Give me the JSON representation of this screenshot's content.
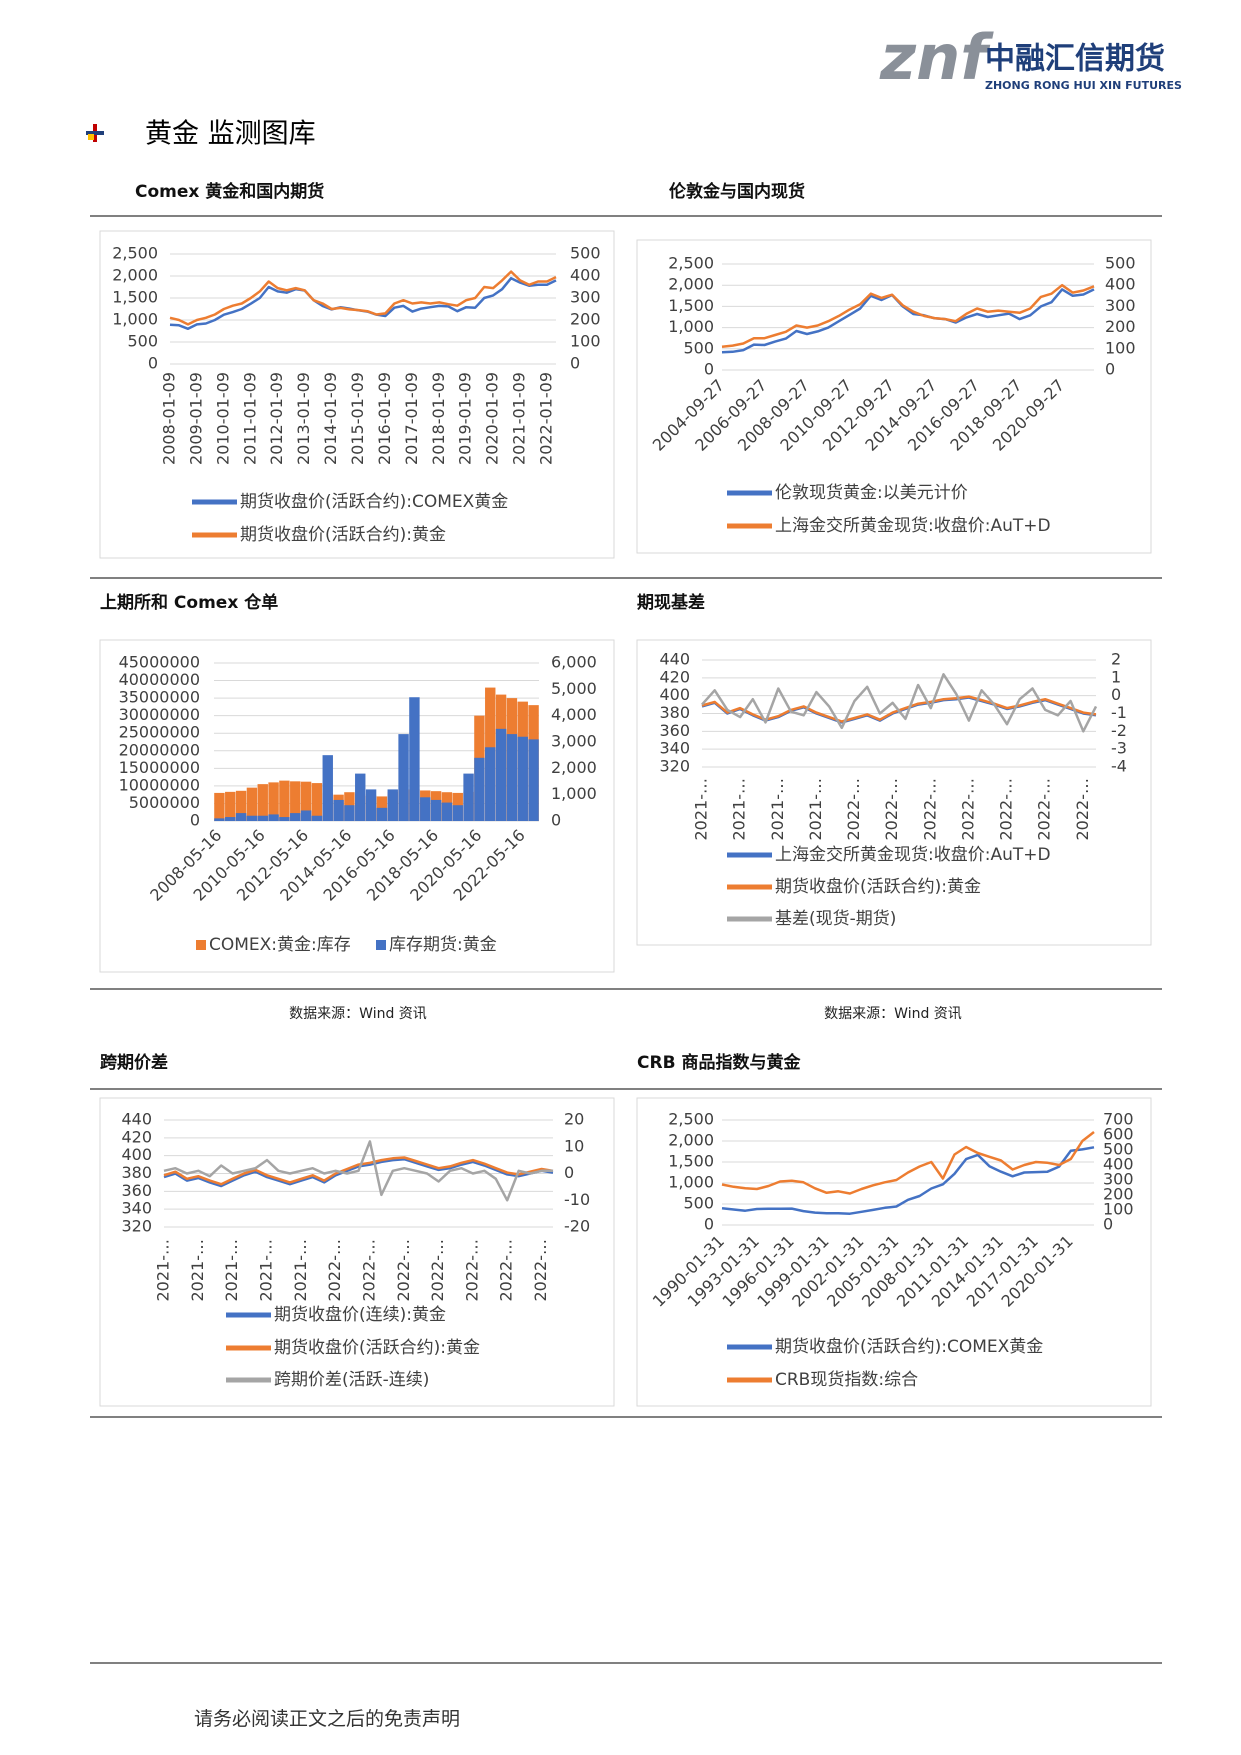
{
  "logo": {
    "mark": "znf",
    "name": "中融汇信期货",
    "english": "ZHONG RONG HUI XIN FUTURES"
  },
  "section_title": "黄金 监测图库",
  "sources": [
    "数据来源：Wind 资讯",
    "数据来源：Wind 资讯"
  ],
  "footer": "请务必阅读正文之后的免责声明",
  "chart_data": [
    {
      "type": "line",
      "title": "Comex 黄金和国内期货",
      "categories": [
        "2008-01-09",
        null,
        null,
        "2009-01-09",
        null,
        null,
        "2010-01-09",
        null,
        null,
        "2011-01-09",
        null,
        null,
        "2012-01-09",
        null,
        null,
        "2013-01-09",
        null,
        null,
        "2014-01-09",
        null,
        null,
        "2015-01-09",
        null,
        null,
        "2016-01-09",
        null,
        null,
        "2017-01-09",
        null,
        null,
        "2018-01-09",
        null,
        null,
        "2019-01-09",
        null,
        null,
        "2020-01-09",
        null,
        null,
        "2021-01-09",
        null,
        null,
        "2022-01-09",
        null
      ],
      "series": [
        {
          "name": "期货收盘价(活跃合约):COMEX黄金",
          "color": "#4472c4",
          "values": [
            890,
            880,
            800,
            900,
            920,
            1000,
            1120,
            1180,
            1250,
            1370,
            1500,
            1750,
            1650,
            1620,
            1700,
            1670,
            1450,
            1320,
            1240,
            1290,
            1260,
            1220,
            1190,
            1120,
            1090,
            1280,
            1320,
            1190,
            1260,
            1290,
            1320,
            1310,
            1200,
            1290,
            1280,
            1500,
            1560,
            1700,
            1950,
            1850,
            1780,
            1800,
            1800,
            1900
          ]
        },
        {
          "name": "期货收盘价(活跃合约):黄金",
          "color": "#ed7d31",
          "axis": "y2",
          "values": [
            210,
            200,
            180,
            200,
            210,
            225,
            250,
            265,
            275,
            300,
            330,
            375,
            345,
            335,
            345,
            335,
            290,
            275,
            250,
            255,
            248,
            245,
            240,
            225,
            230,
            275,
            290,
            275,
            280,
            275,
            280,
            272,
            265,
            290,
            300,
            350,
            345,
            380,
            420,
            380,
            360,
            375,
            375,
            395
          ]
        }
      ],
      "ylim": [
        0,
        2500
      ],
      "yticks": [
        0,
        500,
        {
          "value": 1000,
          "label": "1,000"
        },
        {
          "value": 1500,
          "label": "1,500"
        },
        {
          "value": 2000,
          "label": "2,000"
        },
        {
          "value": 2500,
          "label": "2,500"
        }
      ],
      "y2lim": [
        0,
        500
      ],
      "y2ticks": [
        0,
        100,
        200,
        300,
        400,
        500
      ],
      "grid": true
    },
    {
      "type": "line",
      "title": "伦敦金与国内现货",
      "categories": [
        "2004-09-27",
        null,
        null,
        null,
        "2006-09-27",
        null,
        null,
        null,
        "2008-09-27",
        null,
        null,
        null,
        "2010-09-27",
        null,
        null,
        null,
        "2012-09-27",
        null,
        null,
        null,
        "2014-09-27",
        null,
        null,
        null,
        "2016-09-27",
        null,
        null,
        null,
        "2018-09-27",
        null,
        null,
        null,
        "2020-09-27",
        null,
        null,
        null
      ],
      "series": [
        {
          "name": "伦敦现货黄金:以美元计价",
          "color": "#4472c4",
          "values": [
            420,
            430,
            470,
            600,
            590,
            670,
            740,
            920,
            850,
            910,
            1000,
            1150,
            1300,
            1450,
            1750,
            1650,
            1770,
            1500,
            1320,
            1290,
            1220,
            1200,
            1120,
            1240,
            1320,
            1250,
            1290,
            1330,
            1200,
            1290,
            1500,
            1600,
            1900,
            1750,
            1780,
            1900
          ]
        },
        {
          "name": "上海金交所黄金现货:收盘价:AuT+D",
          "color": "#ed7d31",
          "axis": "y2",
          "values": [
            110,
            115,
            125,
            150,
            150,
            165,
            180,
            210,
            200,
            210,
            230,
            255,
            285,
            310,
            360,
            340,
            355,
            305,
            275,
            255,
            245,
            240,
            230,
            265,
            290,
            275,
            280,
            275,
            270,
            290,
            345,
            360,
            400,
            365,
            375,
            395
          ]
        }
      ],
      "ylim": [
        0,
        2500
      ],
      "yticks": [
        0,
        500,
        {
          "value": 1000,
          "label": "1,000"
        },
        {
          "value": 1500,
          "label": "1,500"
        },
        {
          "value": 2000,
          "label": "2,000"
        },
        {
          "value": 2500,
          "label": "2,500"
        }
      ],
      "y2lim": [
        0,
        500
      ],
      "y2ticks": [
        0,
        100,
        200,
        300,
        400,
        500
      ],
      "grid": true
    },
    {
      "type": "bar",
      "title": "上期所和 Comex 仓单",
      "categories": [
        "2008-05-16",
        null,
        null,
        null,
        "2010-05-16",
        null,
        null,
        null,
        "2012-05-16",
        null,
        null,
        null,
        "2014-05-16",
        null,
        null,
        null,
        "2016-05-16",
        null,
        null,
        null,
        "2018-05-16",
        null,
        null,
        null,
        "2020-05-16",
        null,
        null,
        null,
        "2022-05-16",
        null
      ],
      "series": [
        {
          "name": "COMEX:黄金:库存",
          "color": "#ed7d31",
          "values": [
            8000000,
            8300000,
            8600000,
            9500000,
            10500000,
            11000000,
            11500000,
            11300000,
            11200000,
            10800000,
            8000000,
            7500000,
            8200000,
            7800000,
            7200000,
            7000000,
            8300000,
            9000000,
            9000000,
            8700000,
            8500000,
            8200000,
            8000000,
            8300000,
            30000000,
            38000000,
            36000000,
            35000000,
            34000000,
            33000000
          ]
        },
        {
          "name": "库存期货:黄金",
          "color": "#4472c4",
          "axis": "y2",
          "values": [
            100,
            150,
            300,
            200,
            200,
            250,
            150,
            300,
            400,
            200,
            2500,
            800,
            600,
            1800,
            1200,
            500,
            1200,
            3300,
            4700,
            900,
            800,
            700,
            600,
            1800,
            2400,
            2800,
            3500,
            3300,
            3200,
            3100
          ]
        }
      ],
      "ylim": [
        0,
        45000000
      ],
      "yticks": [
        0,
        5000000,
        10000000,
        15000000,
        20000000,
        25000000,
        30000000,
        35000000,
        40000000,
        45000000
      ],
      "y2lim": [
        0,
        6000
      ],
      "y2ticks": [
        0,
        {
          "value": 1000,
          "label": "1,000"
        },
        {
          "value": 2000,
          "label": "2,000"
        },
        {
          "value": 3000,
          "label": "3,000"
        },
        {
          "value": 4000,
          "label": "4,000"
        },
        {
          "value": 5000,
          "label": "5,000"
        },
        {
          "value": 6000,
          "label": "6,000"
        }
      ],
      "grid": true
    },
    {
      "type": "line",
      "title": "期现基差",
      "categories": [
        "2021-…",
        null,
        null,
        "2021-…",
        null,
        null,
        "2021-…",
        null,
        null,
        "2021-…",
        null,
        null,
        "2022-…",
        null,
        null,
        "2022-…",
        null,
        null,
        "2022-…",
        null,
        null,
        "2022-…",
        null,
        null,
        "2022-…",
        null,
        null,
        "2022-…",
        null,
        null,
        "2022-…",
        null
      ],
      "series": [
        {
          "name": "上海金交所黄金现货:收盘价:AuT+D",
          "color": "#4472c4",
          "values": [
            388,
            392,
            380,
            385,
            378,
            372,
            376,
            383,
            387,
            380,
            375,
            370,
            374,
            378,
            372,
            380,
            385,
            390,
            392,
            395,
            396,
            398,
            394,
            390,
            385,
            388,
            392,
            395,
            390,
            385,
            380,
            378
          ]
        },
        {
          "name": "期货收盘价(活跃合约):黄金",
          "color": "#ed7d31",
          "values": [
            389,
            393,
            381,
            386,
            379,
            373,
            377,
            384,
            388,
            381,
            376,
            371,
            375,
            379,
            373,
            381,
            386,
            391,
            393,
            396,
            397,
            399,
            395,
            391,
            386,
            389,
            393,
            396,
            391,
            386,
            381,
            379
          ]
        },
        {
          "name": "基差(现货-期货)",
          "color": "#a5a5a5",
          "axis": "y2",
          "values": [
            -0.5,
            0.3,
            -0.8,
            -1.2,
            -0.2,
            -1.5,
            0.4,
            -0.9,
            -1.1,
            0.2,
            -0.6,
            -1.8,
            -0.3,
            0.5,
            -1.0,
            -0.4,
            -1.3,
            0.6,
            -0.7,
            1.2,
            0.1,
            -1.4,
            0.3,
            -0.5,
            -1.6,
            -0.2,
            0.4,
            -0.8,
            -1.1,
            -0.3,
            -2.0,
            -0.6
          ]
        }
      ],
      "ylim": [
        320,
        440
      ],
      "yticks": [
        320,
        340,
        360,
        380,
        400,
        420,
        440
      ],
      "y2lim": [
        -4,
        2
      ],
      "y2ticks": [
        -4,
        -3,
        -2,
        -1,
        0,
        1,
        2
      ],
      "grid": true
    },
    {
      "type": "line",
      "title": "跨期价差",
      "categories": [
        "2021-…",
        null,
        null,
        "2021-…",
        null,
        null,
        "2021-…",
        null,
        null,
        "2021-…",
        null,
        null,
        "2021-…",
        null,
        null,
        "2022-…",
        null,
        null,
        "2022-…",
        null,
        null,
        "2022-…",
        null,
        null,
        "2022-…",
        null,
        null,
        "2022-…",
        null,
        null,
        "2022-…",
        null,
        null,
        "2022-…",
        null
      ],
      "series": [
        {
          "name": "期货收盘价(连续):黄金",
          "color": "#4472c4",
          "values": [
            376,
            380,
            372,
            375,
            370,
            366,
            372,
            378,
            382,
            376,
            372,
            368,
            372,
            376,
            370,
            378,
            383,
            388,
            390,
            393,
            395,
            396,
            392,
            388,
            384,
            386,
            390,
            393,
            389,
            384,
            379,
            377,
            380,
            383,
            381
          ]
        },
        {
          "name": "期货收盘价(活跃合约):黄金",
          "color": "#ed7d31",
          "values": [
            378,
            382,
            374,
            377,
            372,
            368,
            374,
            380,
            384,
            378,
            374,
            370,
            374,
            378,
            372,
            380,
            385,
            390,
            392,
            395,
            397,
            398,
            394,
            390,
            386,
            388,
            392,
            395,
            391,
            386,
            381,
            379,
            382,
            385,
            383
          ]
        },
        {
          "name": "跨期价差(活跃-连续)",
          "color": "#a5a5a5",
          "axis": "y2",
          "values": [
            1,
            2,
            0,
            1,
            -1,
            3,
            0,
            1,
            2,
            5,
            1,
            0,
            1,
            2,
            0,
            1,
            0,
            1,
            12,
            -8,
            1,
            2,
            1,
            0,
            -3,
            1,
            2,
            0,
            1,
            -2,
            -10,
            1,
            0,
            1,
            1
          ]
        }
      ],
      "ylim": [
        320,
        440
      ],
      "yticks": [
        320,
        340,
        360,
        380,
        400,
        420,
        440
      ],
      "y2lim": [
        -20,
        20
      ],
      "y2ticks": [
        -20,
        -10,
        0,
        10,
        20
      ],
      "grid": true
    },
    {
      "type": "line",
      "title": "CRB 商品指数与黄金",
      "categories": [
        "1990-01-31",
        null,
        null,
        "1993-01-31",
        null,
        null,
        "1996-01-31",
        null,
        null,
        "1999-01-31",
        null,
        null,
        "2002-01-31",
        null,
        null,
        "2005-01-31",
        null,
        null,
        "2008-01-31",
        null,
        null,
        "2011-01-31",
        null,
        null,
        "2014-01-31",
        null,
        null,
        "2017-01-31",
        null,
        null,
        "2020-01-31",
        null,
        null
      ],
      "series": [
        {
          "name": "期货收盘价(活跃合约):COMEX黄金",
          "color": "#4472c4",
          "values": [
            400,
            370,
            340,
            380,
            385,
            385,
            390,
            330,
            295,
            280,
            280,
            270,
            315,
            360,
            410,
            440,
            600,
            690,
            870,
            970,
            1220,
            1570,
            1670,
            1400,
            1270,
            1160,
            1250,
            1260,
            1270,
            1390,
            1770,
            1800,
            1850
          ]
        },
        {
          "name": "CRB现货指数:综合",
          "color": "#ed7d31",
          "axis": "y2",
          "values": [
            270,
            255,
            245,
            240,
            260,
            290,
            295,
            285,
            245,
            215,
            225,
            210,
            240,
            265,
            285,
            300,
            350,
            390,
            420,
            310,
            470,
            520,
            480,
            455,
            430,
            370,
            400,
            420,
            415,
            400,
            440,
            560,
            620
          ]
        }
      ],
      "ylim": [
        0,
        2500
      ],
      "yticks": [
        0,
        500,
        {
          "value": 1000,
          "label": "1,000"
        },
        {
          "value": 1500,
          "label": "1,500"
        },
        {
          "value": 2000,
          "label": "2,000"
        },
        {
          "value": 2500,
          "label": "2,500"
        }
      ],
      "y2lim": [
        0,
        700
      ],
      "y2ticks": [
        0,
        100,
        200,
        300,
        400,
        500,
        600,
        700
      ],
      "grid": true
    }
  ]
}
